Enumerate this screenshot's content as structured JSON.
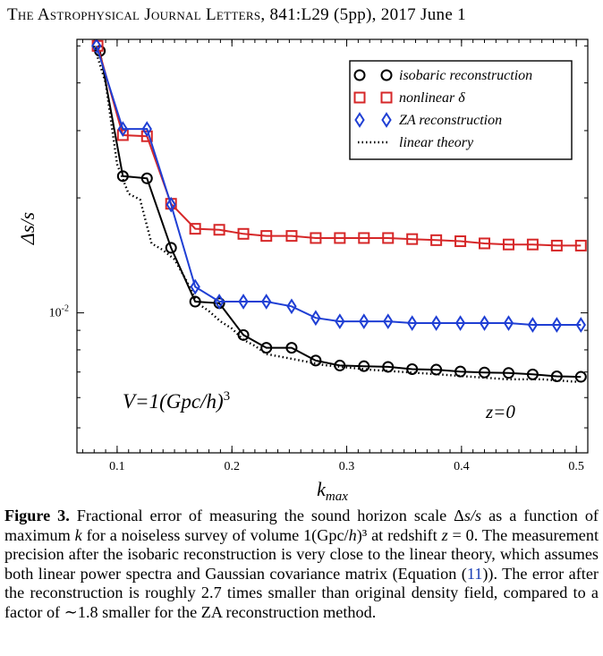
{
  "header": {
    "journal": "The Astrophysical Journal Letters",
    "citation": ", 841:L29 (5pp), 2017 June 1"
  },
  "figure": {
    "annotations": {
      "volume": "V=1(Gpc/h)",
      "volume_exponent": "3",
      "redshift": "z=0"
    }
  },
  "chart_data": {
    "type": "line",
    "xlabel": "k",
    "xlabel_sub": "max",
    "ylabel": "Δs/s",
    "yscale": "log",
    "xlim": [
      0.065,
      0.51
    ],
    "ylim": [
      0.0043,
      0.052
    ],
    "x_ticks": [
      {
        "value": 0.1,
        "label": "0.1"
      },
      {
        "value": 0.2,
        "label": "0.2"
      },
      {
        "value": 0.3,
        "label": "0.3"
      },
      {
        "value": 0.4,
        "label": "0.4"
      },
      {
        "value": 0.5,
        "label": "0.5"
      }
    ],
    "y_ticks": [
      {
        "value": 0.01,
        "label": "10",
        "exponent": "-2"
      }
    ],
    "legend_position": "top-right",
    "series": [
      {
        "name": "isobaric reconstruction",
        "color": "#000000",
        "marker": "circle",
        "style": "solid",
        "x": [
          0.085,
          0.105,
          0.126,
          0.147,
          0.168,
          0.189,
          0.21,
          0.23,
          0.252,
          0.273,
          0.294,
          0.315,
          0.336,
          0.357,
          0.378,
          0.399,
          0.42,
          0.441,
          0.462,
          0.483,
          0.504
        ],
        "values": [
          0.0485,
          0.0228,
          0.0225,
          0.0148,
          0.0107,
          0.0106,
          0.00875,
          0.0081,
          0.0081,
          0.0075,
          0.00728,
          0.00725,
          0.00722,
          0.00712,
          0.0071,
          0.00702,
          0.00698,
          0.00696,
          0.0069,
          0.00682,
          0.0068
        ]
      },
      {
        "name": "nonlinear δ",
        "color": "#d62728",
        "marker": "square",
        "style": "solid",
        "x": [
          0.083,
          0.105,
          0.126,
          0.147,
          0.168,
          0.189,
          0.21,
          0.23,
          0.252,
          0.273,
          0.294,
          0.315,
          0.336,
          0.357,
          0.378,
          0.399,
          0.42,
          0.441,
          0.462,
          0.483,
          0.504
        ],
        "values": [
          0.05,
          0.0292,
          0.029,
          0.0193,
          0.0166,
          0.0165,
          0.0161,
          0.0159,
          0.0159,
          0.0157,
          0.0157,
          0.0157,
          0.0157,
          0.0156,
          0.0155,
          0.0154,
          0.0152,
          0.0151,
          0.0151,
          0.015,
          0.015
        ]
      },
      {
        "name": "ZA reconstruction",
        "color": "#1f3fd4",
        "marker": "diamond",
        "style": "solid",
        "x": [
          0.082,
          0.105,
          0.126,
          0.147,
          0.168,
          0.189,
          0.21,
          0.23,
          0.252,
          0.273,
          0.294,
          0.315,
          0.336,
          0.357,
          0.378,
          0.399,
          0.42,
          0.441,
          0.462,
          0.483,
          0.504
        ],
        "values": [
          0.05,
          0.0303,
          0.0303,
          0.0192,
          0.0117,
          0.0107,
          0.0107,
          0.0107,
          0.0104,
          0.0097,
          0.0095,
          0.0095,
          0.0095,
          0.0094,
          0.0094,
          0.0094,
          0.0094,
          0.0094,
          0.0093,
          0.0093,
          0.0093
        ]
      },
      {
        "name": "linear theory",
        "color": "#000000",
        "marker": "none",
        "style": "dotted",
        "x": [
          0.08,
          0.09,
          0.1,
          0.11,
          0.12,
          0.13,
          0.14,
          0.15,
          0.16,
          0.17,
          0.18,
          0.19,
          0.2,
          0.21,
          0.22,
          0.23,
          0.24,
          0.25,
          0.26,
          0.28,
          0.3,
          0.32,
          0.35,
          0.38,
          0.41,
          0.44,
          0.47,
          0.5
        ],
        "values": [
          0.05,
          0.04,
          0.0245,
          0.0205,
          0.0198,
          0.0152,
          0.0146,
          0.0138,
          0.0122,
          0.0106,
          0.0101,
          0.0095,
          0.0091,
          0.0085,
          0.0082,
          0.0078,
          0.0077,
          0.0076,
          0.0075,
          0.0073,
          0.0072,
          0.0071,
          0.007,
          0.0069,
          0.0068,
          0.0067,
          0.0067,
          0.0066
        ]
      }
    ]
  },
  "caption": {
    "label": "Figure 3.",
    "t1": " Fractional error of measuring the sound horizon scale Δ",
    "v1": "s/s",
    "t2": " as a function of maximum ",
    "v2": "k",
    "t3": " for a noiseless survey of volume 1(Gpc/",
    "v3": "h",
    "t4": ")³ at redshift ",
    "v4": "z",
    "t5": " = 0. The measurement precision after the isobaric reconstruction is very close to the linear theory, which assumes both linear power spectra and Gaussian covariance matrix (Equation (",
    "eq_link": "11",
    "t6": ")). The error after the reconstruction is roughly 2.7 times smaller than original density field, compared to a factor of ∼1.8 smaller for the ZA reconstruction method."
  }
}
